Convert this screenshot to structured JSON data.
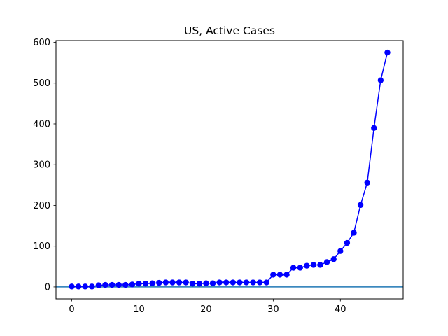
{
  "chart_data": {
    "type": "line",
    "title": "US, Active Cases",
    "xlabel": "",
    "ylabel": "",
    "xlim": [
      -2.35,
      49.35
    ],
    "ylim": [
      -29.3,
      604.3
    ],
    "x_ticks": [
      0,
      10,
      20,
      30,
      40
    ],
    "y_ticks": [
      0,
      100,
      200,
      300,
      400,
      500,
      600
    ],
    "grid": false,
    "legend": "none",
    "horizontal_line": {
      "y": 0,
      "color": "#1f77b4"
    },
    "series": [
      {
        "color": "#0000ff",
        "marker": "circle",
        "x": [
          0,
          1,
          2,
          3,
          4,
          5,
          6,
          7,
          8,
          9,
          10,
          11,
          12,
          13,
          14,
          15,
          16,
          17,
          18,
          19,
          20,
          21,
          22,
          23,
          24,
          25,
          26,
          27,
          28,
          29,
          30,
          31,
          32,
          33,
          34,
          35,
          36,
          37,
          38,
          39,
          40,
          41,
          42,
          43,
          44,
          45,
          46,
          47
        ],
        "values": [
          1,
          1,
          1,
          1,
          4,
          5,
          5,
          5,
          5,
          6,
          8,
          8,
          9,
          10,
          11,
          11,
          11,
          11,
          8,
          8,
          9,
          9,
          11,
          11,
          11,
          11,
          11,
          11,
          11,
          11,
          30,
          30,
          30,
          47,
          47,
          52,
          54,
          54,
          61,
          68,
          88,
          108,
          133,
          201,
          256,
          390,
          507,
          575
        ]
      }
    ]
  }
}
